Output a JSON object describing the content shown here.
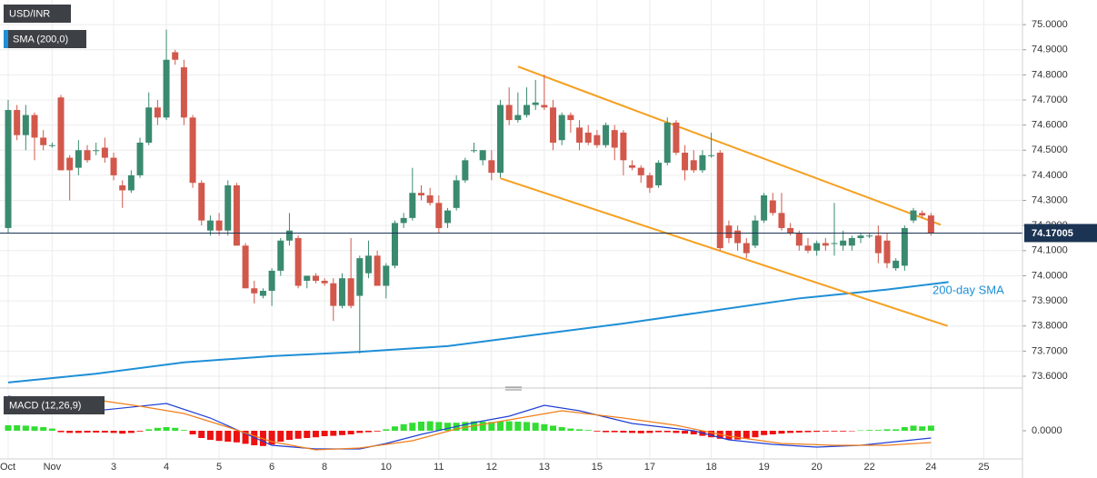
{
  "chart_data": [
    {
      "type": "candlestick",
      "title": "USD/INR",
      "categories": [
        "Oct",
        null,
        null,
        null,
        null,
        "Nov",
        null,
        null,
        null,
        null,
        null,
        null,
        "3",
        null,
        null,
        null,
        null,
        null,
        "4",
        null,
        null,
        null,
        null,
        null,
        "5",
        null,
        null,
        null,
        null,
        null,
        "6",
        null,
        null,
        null,
        null,
        null,
        "8",
        null,
        null,
        null,
        null,
        null,
        null,
        "10",
        null,
        null,
        null,
        null,
        null,
        "11",
        null,
        null,
        null,
        null,
        null,
        "12",
        null,
        null,
        null,
        null,
        null,
        "13",
        null,
        null,
        null,
        null,
        null,
        "15",
        null,
        null,
        null,
        null,
        null,
        "17",
        null,
        null,
        null,
        null,
        null,
        null,
        "18",
        null,
        null,
        null,
        null,
        null,
        "19",
        null,
        null,
        null,
        null,
        null,
        "20",
        null,
        null,
        null,
        null,
        null,
        "22",
        null,
        null,
        null,
        null,
        null,
        null,
        "24",
        null,
        null,
        null,
        null,
        null,
        "25"
      ],
      "open": [
        74.19,
        74.66,
        74.56,
        74.64,
        74.55,
        74.52,
        74.71,
        74.47,
        74.43,
        74.5,
        74.5,
        74.51,
        74.47,
        74.36,
        74.34,
        74.4,
        74.53,
        74.67,
        74.63,
        74.89,
        74.83,
        74.63,
        74.37,
        74.18,
        74.22,
        74.18,
        74.36,
        74.12,
        73.95,
        73.92,
        73.94,
        74.02,
        74.14,
        74.15,
        73.98,
        74.0,
        73.98,
        73.97,
        73.88,
        73.99,
        73.92,
        74.01,
        74.08,
        73.96,
        74.04,
        74.21,
        74.23,
        74.33,
        74.32,
        74.29,
        74.21,
        74.27,
        74.38,
        74.5,
        74.46,
        74.46,
        74.41,
        74.68,
        74.62,
        74.64,
        74.68,
        74.68,
        74.67,
        74.54,
        74.64,
        74.59,
        74.57,
        74.56,
        74.52,
        74.58,
        74.57,
        74.44,
        74.43,
        74.4,
        74.36,
        74.45,
        74.61,
        74.49,
        74.46,
        74.42,
        74.48,
        74.49,
        74.2,
        74.18,
        74.13,
        74.12,
        74.22,
        74.3,
        74.25,
        74.19,
        74.17,
        74.12,
        74.1,
        74.13,
        74.13,
        74.12,
        74.12,
        74.15,
        74.16,
        74.16,
        74.14,
        74.03,
        74.04,
        74.22,
        74.25,
        74.24,
        null,
        null,
        null,
        null,
        null,
        null
      ],
      "high": [
        74.7,
        74.68,
        74.68,
        74.65,
        74.58,
        74.53,
        74.72,
        74.48,
        74.54,
        74.52,
        74.53,
        74.55,
        74.49,
        74.38,
        74.42,
        74.55,
        74.73,
        74.7,
        74.98,
        74.9,
        74.86,
        74.64,
        74.38,
        74.24,
        74.25,
        74.38,
        74.37,
        74.13,
        73.98,
        73.95,
        74.03,
        74.15,
        74.25,
        74.16,
        74.0,
        74.01,
        73.99,
        73.99,
        74.01,
        74.15,
        74.08,
        74.14,
        74.1,
        74.05,
        74.22,
        74.25,
        74.43,
        74.36,
        74.35,
        74.32,
        74.27,
        74.4,
        74.47,
        74.53,
        74.5,
        74.5,
        74.7,
        74.75,
        74.73,
        74.75,
        74.78,
        74.8,
        74.7,
        74.65,
        74.65,
        74.62,
        74.6,
        74.58,
        74.61,
        74.6,
        74.58,
        74.46,
        74.44,
        74.41,
        74.46,
        74.63,
        74.62,
        74.52,
        74.5,
        74.5,
        74.57,
        74.5,
        74.22,
        74.2,
        74.15,
        74.24,
        74.33,
        74.33,
        74.33,
        74.21,
        74.18,
        74.15,
        74.14,
        74.15,
        74.29,
        74.18,
        74.16,
        74.17,
        74.17,
        74.2,
        74.17,
        74.07,
        74.2,
        74.27,
        74.26,
        74.25,
        null,
        null,
        null,
        null,
        null,
        null
      ],
      "low": [
        74.17,
        74.54,
        74.5,
        74.46,
        74.5,
        74.51,
        74.42,
        74.3,
        74.4,
        74.45,
        74.48,
        74.45,
        74.38,
        74.27,
        74.33,
        74.39,
        74.52,
        74.6,
        74.62,
        74.84,
        74.6,
        74.35,
        74.2,
        74.16,
        74.16,
        74.16,
        74.12,
        73.95,
        73.89,
        73.91,
        73.88,
        74.0,
        74.12,
        73.95,
        73.95,
        73.97,
        73.96,
        73.82,
        73.87,
        73.87,
        73.69,
        73.99,
        73.96,
        73.91,
        74.03,
        74.19,
        74.22,
        74.3,
        74.28,
        74.17,
        74.19,
        74.26,
        74.37,
        74.49,
        74.44,
        74.38,
        74.39,
        74.6,
        74.61,
        74.63,
        74.66,
        74.66,
        74.5,
        74.52,
        74.57,
        74.5,
        74.52,
        74.51,
        74.51,
        74.46,
        74.4,
        74.42,
        74.37,
        74.33,
        74.35,
        74.44,
        74.48,
        74.38,
        74.41,
        74.41,
        74.47,
        74.1,
        74.13,
        74.1,
        74.07,
        74.11,
        74.21,
        74.24,
        74.18,
        74.16,
        74.1,
        74.09,
        74.08,
        74.1,
        74.08,
        74.1,
        74.1,
        74.13,
        74.15,
        74.05,
        74.03,
        74.02,
        74.02,
        74.21,
        74.23,
        74.16,
        null,
        null,
        null,
        null,
        null,
        null
      ],
      "close": [
        74.66,
        74.56,
        74.64,
        74.55,
        74.52,
        74.52,
        74.42,
        74.42,
        74.5,
        74.46,
        74.5,
        74.47,
        74.4,
        74.34,
        74.4,
        74.53,
        74.67,
        74.63,
        74.86,
        74.86,
        74.63,
        74.37,
        74.22,
        74.22,
        74.18,
        74.36,
        74.12,
        73.95,
        73.93,
        73.94,
        74.02,
        74.14,
        74.18,
        73.96,
        74.0,
        73.98,
        73.97,
        73.88,
        73.99,
        73.88,
        74.07,
        74.08,
        73.96,
        74.04,
        74.21,
        74.23,
        74.33,
        74.32,
        74.29,
        74.19,
        74.26,
        74.38,
        74.46,
        74.5,
        74.5,
        74.41,
        74.68,
        74.62,
        74.64,
        74.68,
        74.69,
        74.67,
        74.53,
        74.64,
        74.62,
        74.53,
        74.53,
        74.52,
        74.6,
        74.51,
        74.46,
        74.43,
        74.4,
        74.35,
        74.45,
        74.61,
        74.49,
        74.42,
        74.42,
        74.48,
        74.48,
        74.11,
        74.15,
        74.13,
        74.09,
        74.22,
        74.32,
        74.25,
        74.19,
        74.17,
        74.12,
        74.1,
        74.13,
        74.12,
        74.13,
        74.14,
        74.15,
        74.16,
        74.16,
        74.09,
        74.05,
        74.06,
        74.19,
        74.26,
        74.24,
        74.17,
        null,
        null,
        null,
        null,
        null,
        null
      ],
      "up_color": "#3a8a70",
      "down_color": "#d1584b",
      "ylim": [
        73.571,
        75.098
      ],
      "yticks": [
        {
          "value": 73.6,
          "label": "73.6000"
        },
        {
          "value": 73.7,
          "label": "73.7000"
        },
        {
          "value": 73.8,
          "label": "73.8000"
        },
        {
          "value": 73.9,
          "label": "73.9000"
        },
        {
          "value": 74.0,
          "label": "74.0000"
        },
        {
          "value": 74.1,
          "label": "74.1000"
        },
        {
          "value": 74.2,
          "label": "74.2000"
        },
        {
          "value": 74.3,
          "label": "74.3000"
        },
        {
          "value": 74.4,
          "label": "74.4000"
        },
        {
          "value": 74.5,
          "label": "74.5000"
        },
        {
          "value": 74.6,
          "label": "74.6000"
        },
        {
          "value": 74.7,
          "label": "74.7000"
        },
        {
          "value": 74.8,
          "label": "74.8000"
        },
        {
          "value": 74.9,
          "label": "74.9000"
        },
        {
          "value": 75.0,
          "label": "75.0000"
        }
      ],
      "grid": true,
      "series": [
        {
          "name": "SMA (200,0)",
          "color": "#1e8fd6",
          "x": [
            0,
            10,
            20,
            30,
            40,
            50,
            60,
            70,
            80,
            90,
            100,
            107
          ],
          "values": [
            73.575,
            73.61,
            73.655,
            73.68,
            73.697,
            73.72,
            73.765,
            73.81,
            73.86,
            73.91,
            73.945,
            73.975
          ]
        }
      ],
      "trendlines": [
        {
          "color": "#f5a020",
          "x": [
            58,
            106.1
          ],
          "values": [
            74.833,
            74.203
          ]
        },
        {
          "color": "#f5a020",
          "x": [
            56,
            106.9
          ],
          "values": [
            74.388,
            73.8
          ]
        }
      ],
      "annotations": [
        {
          "text": "200-day SMA"
        }
      ],
      "last_price": 74.17005,
      "last_price_color": "#1c3453"
    },
    {
      "type": "macd",
      "title": "MACD (12,26,9)",
      "histogram": [
        0.015,
        0.015,
        0.014,
        0.012,
        0.01,
        0.006,
        -0.004,
        -0.006,
        -0.006,
        -0.005,
        -0.005,
        -0.005,
        -0.006,
        -0.008,
        -0.006,
        -0.002,
        0.004,
        0.008,
        0.01,
        0.008,
        0.002,
        -0.01,
        -0.02,
        -0.025,
        -0.028,
        -0.03,
        -0.032,
        -0.036,
        -0.04,
        -0.042,
        -0.038,
        -0.03,
        -0.025,
        -0.022,
        -0.02,
        -0.018,
        -0.015,
        -0.014,
        -0.012,
        -0.01,
        -0.006,
        -0.004,
        -0.002,
        0.004,
        0.012,
        0.018,
        0.022,
        0.025,
        0.026,
        0.024,
        0.022,
        0.022,
        0.024,
        0.026,
        0.025,
        0.024,
        0.026,
        0.026,
        0.025,
        0.024,
        0.022,
        0.018,
        0.014,
        0.01,
        0.006,
        0.004,
        0.002,
        -0.002,
        -0.004,
        -0.004,
        -0.005,
        -0.006,
        -0.007,
        -0.006,
        -0.004,
        -0.004,
        -0.006,
        -0.008,
        -0.01,
        -0.014,
        -0.018,
        -0.022,
        -0.024,
        -0.024,
        -0.022,
        -0.018,
        -0.012,
        -0.01,
        -0.008,
        -0.006,
        -0.005,
        -0.004,
        -0.003,
        -0.002,
        -0.002,
        -0.002,
        -0.001,
        0.001,
        0.002,
        0.002,
        0.004,
        0.004,
        0.01,
        0.014,
        0.012,
        0.014,
        null,
        null,
        null,
        null,
        null,
        null
      ],
      "up_color": "#33dd33",
      "down_color": "#ee1111",
      "series": [
        {
          "color": "#1f3fd6",
          "x": [
            0,
            3,
            10,
            18,
            23,
            30,
            35,
            40,
            43,
            47,
            53,
            57,
            61,
            65,
            71,
            78,
            82,
            87,
            92,
            97,
            102,
            105
          ],
          "values": [
            0.095,
            0.085,
            0.055,
            0.075,
            0.035,
            -0.04,
            -0.05,
            -0.05,
            -0.035,
            -0.01,
            0.0225,
            0.04,
            0.07,
            0.055,
            0.02,
            0,
            -0.025,
            -0.0375,
            -0.045,
            -0.04,
            -0.0275,
            -0.02
          ]
        },
        {
          "color": "#f07e1a",
          "x": [
            0,
            10,
            15,
            20,
            25,
            30,
            35,
            40,
            46,
            51,
            57,
            63,
            70,
            76,
            82,
            88,
            94,
            100,
            105
          ],
          "values": [
            0.085,
            0.085,
            0.0675,
            0.0475,
            0.01,
            -0.03,
            -0.0525,
            -0.0475,
            -0.0275,
            0.005,
            0.03,
            0.055,
            0.035,
            0.015,
            -0.015,
            -0.035,
            -0.04,
            -0.04,
            -0.0325
          ]
        }
      ],
      "ylim": [
        -0.0775,
        0.105
      ],
      "yticks": [
        {
          "value": 0,
          "label": "0.0000"
        }
      ]
    }
  ]
}
